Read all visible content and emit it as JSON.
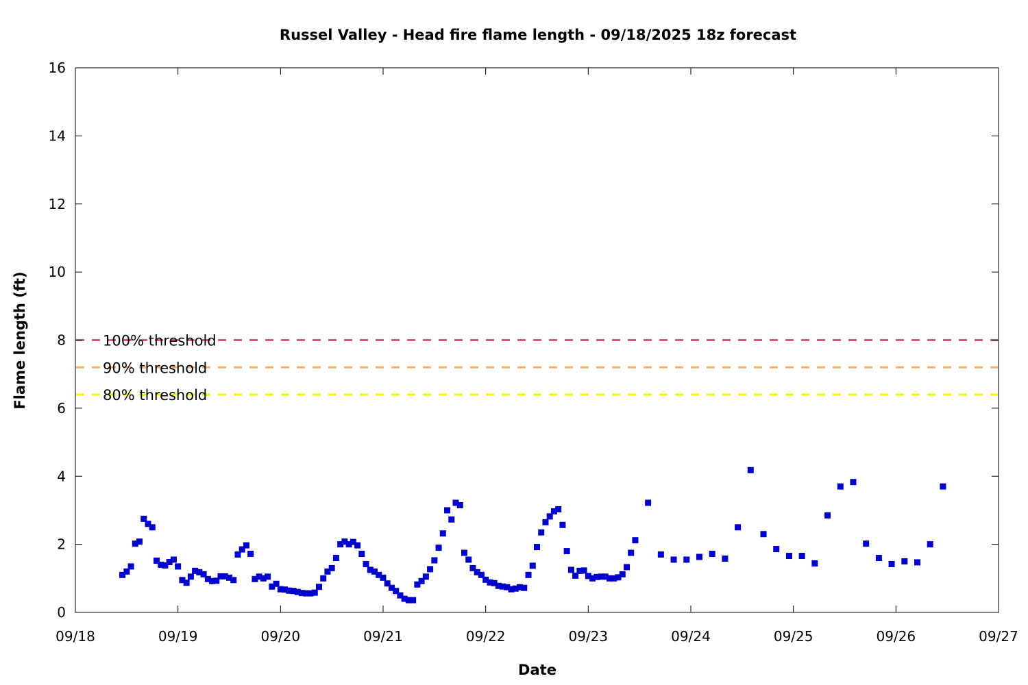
{
  "chart_data": {
    "type": "scatter",
    "title": "Russel Valley - Head fire flame length - 09/18/2025 18z forecast",
    "xlabel": "Date",
    "ylabel": "Flame length (ft)",
    "x_ticks": [
      "09/18",
      "09/19",
      "09/20",
      "09/21",
      "09/22",
      "09/23",
      "09/24",
      "09/25",
      "09/26",
      "09/27"
    ],
    "x_start": "09/18",
    "xlim": [
      "09/18 00:00",
      "09/27 00:00"
    ],
    "ylim": [
      0,
      16
    ],
    "y_ticks": [
      0,
      2,
      4,
      6,
      8,
      10,
      12,
      14,
      16
    ],
    "grid": false,
    "legend_position": "left",
    "colors": {
      "series": "#0000cc",
      "axis": "#000000"
    },
    "thresholds": [
      {
        "name": "100% threshold",
        "value": 8.0,
        "color": "#d9577a"
      },
      {
        "name": "90% threshold",
        "value": 7.2,
        "color": "#f2b272"
      },
      {
        "name": "80% threshold",
        "value": 6.4,
        "color": "#f5f500"
      }
    ],
    "series": [
      {
        "x": [
          "09/18 11:00",
          "09/18 12:00",
          "09/18 13:00",
          "09/18 14:00",
          "09/18 15:00",
          "09/18 16:00",
          "09/18 17:00",
          "09/18 18:00",
          "09/18 19:00",
          "09/18 20:00",
          "09/18 21:00",
          "09/18 22:00",
          "09/18 23:00",
          "09/19 00:00",
          "09/19 01:00",
          "09/19 02:00",
          "09/19 03:00",
          "09/19 04:00",
          "09/19 05:00",
          "09/19 06:00",
          "09/19 07:00",
          "09/19 08:00",
          "09/19 09:00",
          "09/19 10:00",
          "09/19 11:00",
          "09/19 12:00",
          "09/19 13:00",
          "09/19 14:00",
          "09/19 15:00",
          "09/19 16:00",
          "09/19 17:00",
          "09/19 18:00",
          "09/19 19:00",
          "09/19 20:00",
          "09/19 21:00",
          "09/19 22:00",
          "09/19 23:00",
          "09/20 00:00",
          "09/20 01:00",
          "09/20 02:00",
          "09/20 03:00",
          "09/20 04:00",
          "09/20 05:00",
          "09/20 06:00",
          "09/20 07:00",
          "09/20 08:00",
          "09/20 09:00",
          "09/20 10:00",
          "09/20 11:00",
          "09/20 12:00",
          "09/20 13:00",
          "09/20 14:00",
          "09/20 15:00",
          "09/20 16:00",
          "09/20 17:00",
          "09/20 18:00",
          "09/20 19:00",
          "09/20 20:00",
          "09/20 21:00",
          "09/20 22:00",
          "09/20 23:00",
          "09/21 00:00",
          "09/21 01:00",
          "09/21 02:00",
          "09/21 03:00",
          "09/21 04:00",
          "09/21 05:00",
          "09/21 06:00",
          "09/21 07:00",
          "09/21 08:00",
          "09/21 09:00",
          "09/21 10:00",
          "09/21 11:00",
          "09/21 12:00",
          "09/21 13:00",
          "09/21 14:00",
          "09/21 15:00",
          "09/21 16:00",
          "09/21 17:00",
          "09/21 18:00",
          "09/21 19:00",
          "09/21 20:00",
          "09/21 21:00",
          "09/21 22:00",
          "09/21 23:00",
          "09/22 00:00",
          "09/22 01:00",
          "09/22 02:00",
          "09/22 03:00",
          "09/22 04:00",
          "09/22 05:00",
          "09/22 06:00",
          "09/22 07:00",
          "09/22 08:00",
          "09/22 09:00",
          "09/22 10:00",
          "09/22 11:00",
          "09/22 12:00",
          "09/22 13:00",
          "09/22 14:00",
          "09/22 15:00",
          "09/22 16:00",
          "09/22 17:00",
          "09/22 18:00",
          "09/22 19:00",
          "09/22 20:00",
          "09/22 21:00",
          "09/22 22:00",
          "09/22 23:00",
          "09/23 00:00",
          "09/23 01:00",
          "09/23 02:00",
          "09/23 03:00",
          "09/23 04:00",
          "09/23 05:00",
          "09/23 06:00",
          "09/23 07:00",
          "09/23 08:00",
          "09/23 09:00",
          "09/23 10:00",
          "09/23 11:00",
          "09/23 14:00",
          "09/23 17:00",
          "09/23 20:00",
          "09/23 23:00",
          "09/24 02:00",
          "09/24 05:00",
          "09/24 08:00",
          "09/24 11:00",
          "09/24 14:00",
          "09/24 17:00",
          "09/24 20:00",
          "09/24 23:00",
          "09/25 02:00",
          "09/25 05:00",
          "09/25 08:00",
          "09/25 11:00",
          "09/25 14:00",
          "09/25 17:00",
          "09/25 20:00",
          "09/25 23:00",
          "09/26 02:00",
          "09/26 05:00",
          "09/26 08:00",
          "09/26 11:00"
        ],
        "y": [
          1.1,
          1.2,
          1.35,
          2.02,
          2.08,
          2.75,
          2.6,
          2.5,
          1.52,
          1.4,
          1.38,
          1.48,
          1.55,
          1.35,
          0.95,
          0.87,
          1.05,
          1.22,
          1.18,
          1.12,
          0.98,
          0.92,
          0.93,
          1.06,
          1.06,
          1.02,
          0.95,
          1.7,
          1.85,
          1.97,
          1.72,
          0.98,
          1.05,
          1.0,
          1.05,
          0.76,
          0.84,
          0.68,
          0.67,
          0.64,
          0.63,
          0.6,
          0.57,
          0.56,
          0.56,
          0.58,
          0.75,
          1.0,
          1.2,
          1.3,
          1.6,
          2.0,
          2.08,
          2.0,
          2.07,
          1.97,
          1.72,
          1.42,
          1.25,
          1.2,
          1.1,
          1.02,
          0.85,
          0.72,
          0.63,
          0.5,
          0.4,
          0.36,
          0.36,
          0.82,
          0.92,
          1.05,
          1.27,
          1.53,
          1.9,
          2.32,
          3.0,
          2.73,
          3.22,
          3.15,
          1.75,
          1.55,
          1.3,
          1.18,
          1.1,
          0.96,
          0.88,
          0.86,
          0.78,
          0.76,
          0.74,
          0.68,
          0.7,
          0.74,
          0.72,
          1.1,
          1.37,
          1.92,
          2.35,
          2.65,
          2.82,
          2.97,
          3.03,
          2.57,
          1.8,
          1.25,
          1.08,
          1.22,
          1.23,
          1.07,
          1.0,
          1.04,
          1.05,
          1.05,
          1.0,
          1.0,
          1.03,
          1.12,
          1.33,
          1.75,
          2.12,
          3.22,
          1.7,
          1.55,
          1.55,
          1.63,
          1.72,
          1.58,
          2.5,
          4.18,
          2.3,
          1.86,
          1.66,
          1.66,
          1.44,
          2.85,
          3.7,
          3.83,
          2.02,
          1.6,
          1.42,
          1.5,
          1.47,
          2.0,
          3.7
        ]
      }
    ]
  }
}
